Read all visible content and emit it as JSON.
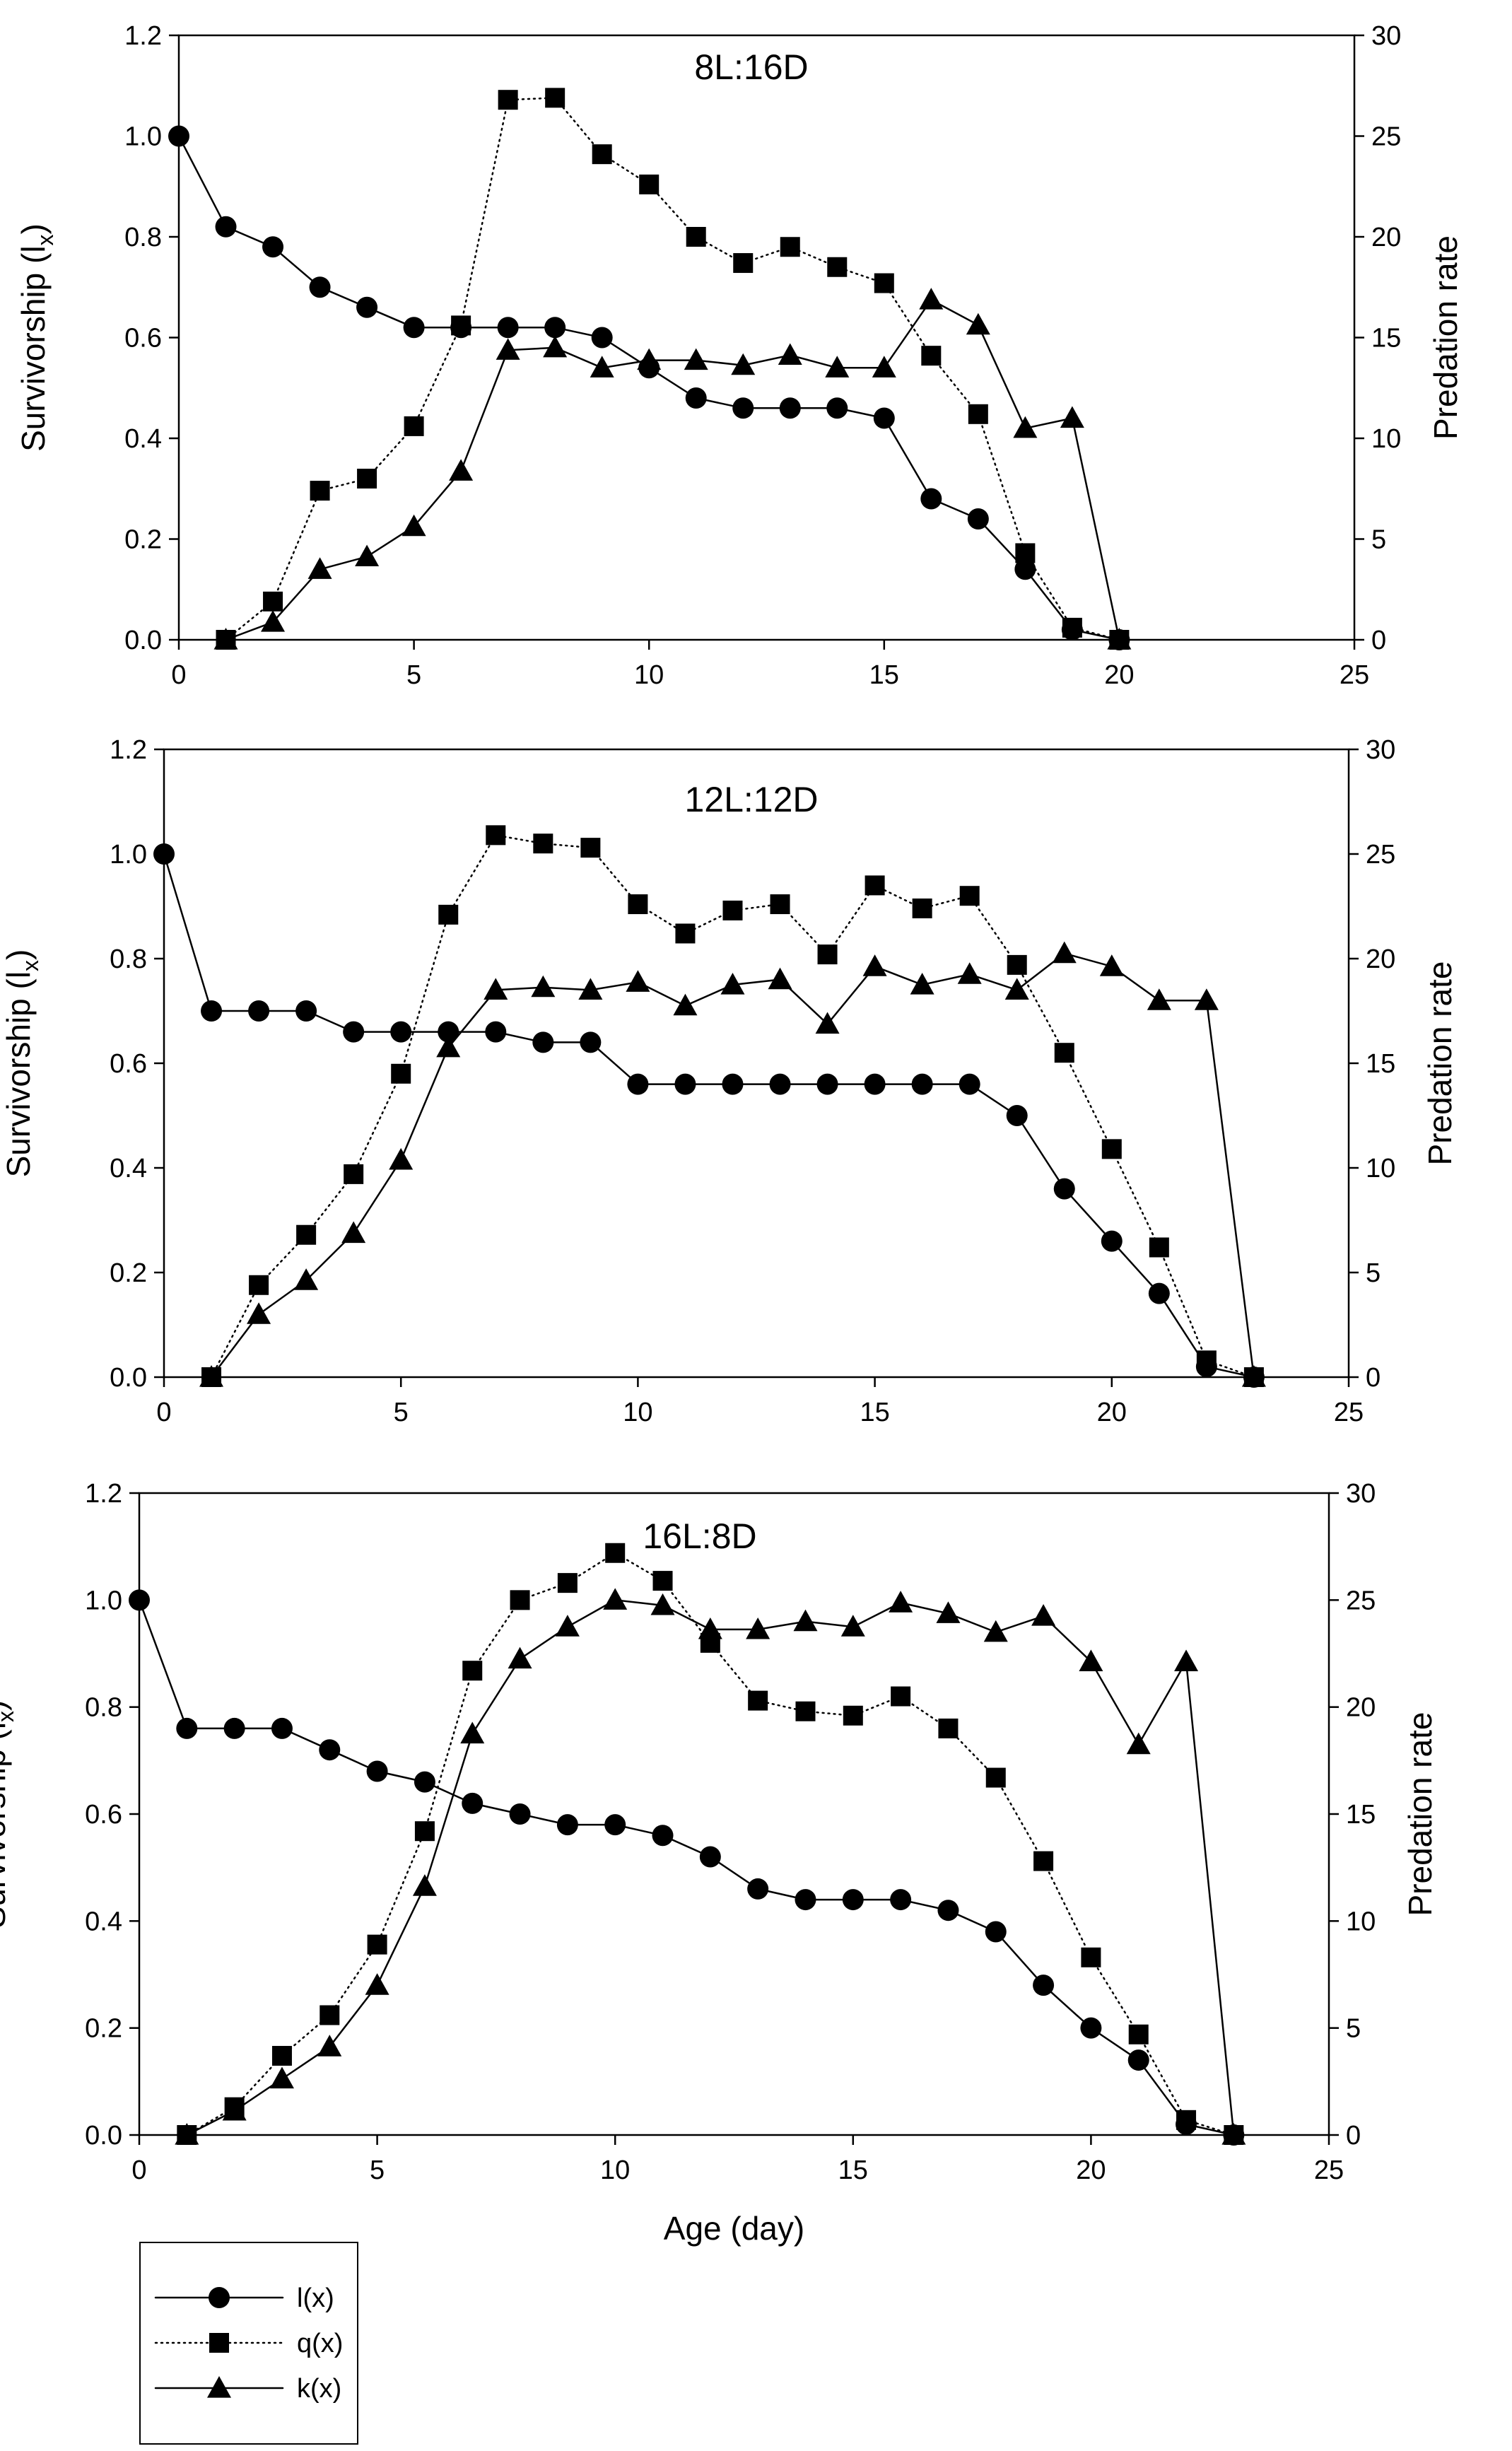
{
  "chart_data": [
    {
      "type": "line",
      "title": "8L:16D",
      "xlabel": "",
      "ylabel": "Survivorship (l",
      "ylabel_sub": "x",
      "ylabel_end": ")",
      "y2label": "Predation rate",
      "xlim": [
        0,
        25
      ],
      "ylim": [
        0,
        1.2
      ],
      "y2lim": [
        0,
        30
      ],
      "xticks": [
        "0",
        "5",
        "10",
        "15",
        "20",
        "25"
      ],
      "yticks": [
        "0.0",
        "0.2",
        "0.4",
        "0.6",
        "0.8",
        "1.0",
        "1.2"
      ],
      "y2ticks": [
        "0",
        "5",
        "10",
        "15",
        "20",
        "25",
        "30"
      ],
      "series": [
        {
          "name": "l(x)",
          "axis": "left",
          "marker": "circle",
          "line": "solid",
          "x": [
            0,
            1,
            2,
            3,
            4,
            5,
            6,
            7,
            8,
            9,
            10,
            11,
            12,
            13,
            14,
            15,
            16,
            17,
            18,
            19,
            20
          ],
          "y": [
            1.0,
            0.82,
            0.78,
            0.7,
            0.66,
            0.62,
            0.62,
            0.62,
            0.62,
            0.6,
            0.54,
            0.48,
            0.46,
            0.46,
            0.46,
            0.44,
            0.28,
            0.24,
            0.14,
            0.02,
            0.0
          ]
        },
        {
          "name": "q(x)",
          "axis": "right",
          "marker": "square",
          "line": "dotted",
          "x": [
            1,
            2,
            3,
            4,
            5,
            6,
            7,
            8,
            9,
            10,
            11,
            12,
            13,
            14,
            15,
            16,
            17,
            18,
            19,
            20
          ],
          "y": [
            0,
            1.9,
            7.4,
            8.0,
            10.6,
            15.6,
            26.8,
            26.9,
            24.1,
            22.6,
            20.0,
            18.7,
            19.5,
            18.5,
            17.7,
            14.1,
            11.2,
            4.3,
            0.6,
            0
          ]
        },
        {
          "name": "k(x)",
          "axis": "left",
          "marker": "triangle",
          "line": "solid",
          "x": [
            1,
            2,
            3,
            4,
            5,
            6,
            7,
            8,
            9,
            10,
            11,
            12,
            13,
            14,
            15,
            16,
            17,
            18,
            19,
            20
          ],
          "y": [
            0.0,
            0.035,
            0.14,
            0.165,
            0.225,
            0.335,
            0.575,
            0.58,
            0.54,
            0.555,
            0.555,
            0.545,
            0.565,
            0.54,
            0.54,
            0.675,
            0.625,
            0.42,
            0.44,
            0.0
          ]
        }
      ]
    },
    {
      "type": "line",
      "title": "12L:12D",
      "xlabel": "",
      "ylabel": "Survivorship (l",
      "ylabel_sub": "x",
      "ylabel_end": ")",
      "y2label": "Predation rate",
      "xlim": [
        0,
        25
      ],
      "ylim": [
        0,
        1.2
      ],
      "y2lim": [
        0,
        30
      ],
      "xticks": [
        "0",
        "5",
        "10",
        "15",
        "20",
        "25"
      ],
      "yticks": [
        "0.0",
        "0.2",
        "0.4",
        "0.6",
        "0.8",
        "1.0",
        "1.2"
      ],
      "y2ticks": [
        "0",
        "5",
        "10",
        "15",
        "20",
        "25",
        "30"
      ],
      "series": [
        {
          "name": "l(x)",
          "axis": "left",
          "marker": "circle",
          "line": "solid",
          "x": [
            0,
            1,
            2,
            3,
            4,
            5,
            6,
            7,
            8,
            9,
            10,
            11,
            12,
            13,
            14,
            15,
            16,
            17,
            18,
            19,
            20,
            21,
            22,
            23
          ],
          "y": [
            1.0,
            0.7,
            0.7,
            0.7,
            0.66,
            0.66,
            0.66,
            0.66,
            0.64,
            0.64,
            0.56,
            0.56,
            0.56,
            0.56,
            0.56,
            0.56,
            0.56,
            0.56,
            0.5,
            0.36,
            0.26,
            0.16,
            0.02,
            0.0
          ]
        },
        {
          "name": "q(x)",
          "axis": "right",
          "marker": "square",
          "line": "dotted",
          "x": [
            1,
            2,
            3,
            4,
            5,
            6,
            7,
            8,
            9,
            10,
            11,
            12,
            13,
            14,
            15,
            16,
            17,
            18,
            19,
            20,
            21,
            22,
            23
          ],
          "y": [
            0,
            4.4,
            6.8,
            9.7,
            14.5,
            22.1,
            25.9,
            25.5,
            25.3,
            22.6,
            21.2,
            22.3,
            22.6,
            20.2,
            23.5,
            22.4,
            23.0,
            19.7,
            15.5,
            10.9,
            6.2,
            0.8,
            0
          ]
        },
        {
          "name": "k(x)",
          "axis": "left",
          "marker": "triangle",
          "line": "solid",
          "x": [
            1,
            2,
            3,
            4,
            5,
            6,
            7,
            8,
            9,
            10,
            11,
            12,
            13,
            14,
            15,
            16,
            17,
            18,
            19,
            20,
            21,
            22,
            23
          ],
          "y": [
            0.0,
            0.12,
            0.185,
            0.275,
            0.415,
            0.63,
            0.74,
            0.745,
            0.74,
            0.755,
            0.71,
            0.75,
            0.76,
            0.675,
            0.785,
            0.75,
            0.77,
            0.74,
            0.81,
            0.785,
            0.72,
            0.72,
            0.0
          ]
        }
      ]
    },
    {
      "type": "line",
      "title": "16L:8D",
      "xlabel": "Age (day)",
      "ylabel": "Survivorship (l",
      "ylabel_sub": "x",
      "ylabel_end": ")",
      "y2label": "Predation rate",
      "xlim": [
        0,
        25
      ],
      "ylim": [
        0,
        1.2
      ],
      "y2lim": [
        0,
        30
      ],
      "xticks": [
        "0",
        "5",
        "10",
        "15",
        "20",
        "25"
      ],
      "yticks": [
        "0.0",
        "0.2",
        "0.4",
        "0.6",
        "0.8",
        "1.0",
        "1.2"
      ],
      "y2ticks": [
        "0",
        "5",
        "10",
        "15",
        "20",
        "25",
        "30"
      ],
      "series": [
        {
          "name": "l(x)",
          "axis": "left",
          "marker": "circle",
          "line": "solid",
          "x": [
            0,
            1,
            2,
            3,
            4,
            5,
            6,
            7,
            8,
            9,
            10,
            11,
            12,
            13,
            14,
            15,
            16,
            17,
            18,
            19,
            20,
            21,
            22,
            23
          ],
          "y": [
            1.0,
            0.76,
            0.76,
            0.76,
            0.72,
            0.68,
            0.66,
            0.62,
            0.6,
            0.58,
            0.58,
            0.56,
            0.52,
            0.46,
            0.44,
            0.44,
            0.44,
            0.42,
            0.38,
            0.28,
            0.2,
            0.14,
            0.02,
            0.0
          ]
        },
        {
          "name": "q(x)",
          "axis": "right",
          "marker": "square",
          "line": "dotted",
          "x": [
            1,
            2,
            3,
            4,
            5,
            6,
            7,
            8,
            9,
            10,
            11,
            12,
            13,
            14,
            15,
            16,
            17,
            18,
            19,
            20,
            21,
            22,
            23
          ],
          "y": [
            0,
            1.3,
            3.7,
            5.6,
            8.9,
            14.2,
            21.7,
            25.0,
            25.8,
            27.2,
            25.9,
            23.0,
            20.3,
            19.8,
            19.6,
            20.5,
            19.0,
            16.7,
            12.8,
            8.3,
            4.7,
            0.7,
            0
          ]
        },
        {
          "name": "k(x)",
          "axis": "left",
          "marker": "triangle",
          "line": "solid",
          "x": [
            1,
            2,
            3,
            4,
            5,
            6,
            7,
            8,
            9,
            10,
            11,
            12,
            13,
            14,
            15,
            16,
            17,
            18,
            19,
            20,
            21,
            22,
            23
          ],
          "y": [
            0.0,
            0.045,
            0.105,
            0.165,
            0.28,
            0.465,
            0.75,
            0.89,
            0.95,
            1.0,
            0.99,
            0.945,
            0.945,
            0.96,
            0.95,
            0.995,
            0.975,
            0.94,
            0.97,
            0.885,
            0.73,
            0.885,
            0.0
          ]
        }
      ]
    }
  ],
  "legend": {
    "location": "bottom-left",
    "entries": [
      {
        "label": "l(x)",
        "marker": "circle",
        "line": "solid"
      },
      {
        "label": "q(x)",
        "marker": "square",
        "line": "dotted"
      },
      {
        "label": "k(x)",
        "marker": "triangle",
        "line": "solid"
      }
    ]
  }
}
